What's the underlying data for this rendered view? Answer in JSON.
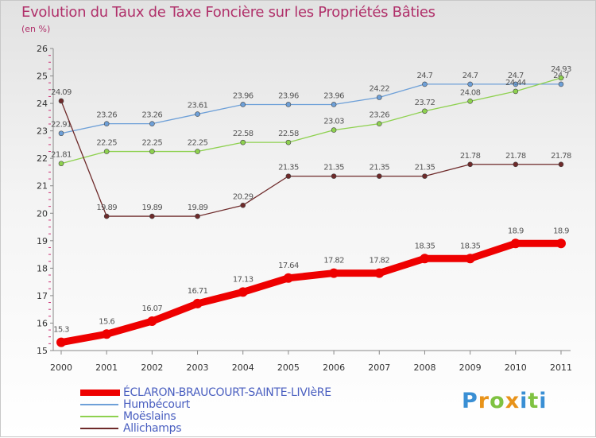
{
  "header": {
    "title": "Evolution du Taux de Taxe Foncière sur les Propriétés Bâties",
    "unit": "(en %)"
  },
  "logo": {
    "letters": [
      "P",
      "r",
      "o",
      "x",
      "i",
      "t",
      "i"
    ],
    "colors": [
      "#3a8fd4",
      "#e8931a",
      "#7fc241",
      "#e8931a",
      "#3a8fd4",
      "#7fc241",
      "#3a8fd4"
    ]
  },
  "chart_data": {
    "type": "line",
    "title": "Evolution du Taux de Taxe Foncière sur les Propriétés Bâties",
    "xlabel": "",
    "ylabel": "(en %)",
    "x": [
      "2000",
      "2001",
      "2002",
      "2003",
      "2004",
      "2005",
      "2006",
      "2007",
      "2008",
      "2009",
      "2010",
      "2011"
    ],
    "ylim": [
      15,
      26
    ],
    "yticks": [
      "15",
      "16",
      "17",
      "18",
      "19",
      "20",
      "21",
      "22",
      "23",
      "24",
      "25",
      "26"
    ],
    "grid": false,
    "legend_position": "bottom-left",
    "series": [
      {
        "name": "ÉCLARON-BRAUCOURT-SAINTE-LIVIèRE",
        "color": "#ee0000",
        "values": [
          15.3,
          15.6,
          16.07,
          16.71,
          17.13,
          17.64,
          17.82,
          17.82,
          18.35,
          18.35,
          18.9,
          18.9
        ],
        "labels": [
          "15.3",
          "15.6",
          "16.07",
          "16.71",
          "17.13",
          "17.64",
          "17.82",
          "17.82",
          "18.35",
          "18.35",
          "18.9",
          "18.9"
        ]
      },
      {
        "name": "Humbécourt",
        "color": "#6ea0d8",
        "values": [
          22.91,
          23.26,
          23.26,
          23.61,
          23.96,
          23.96,
          23.96,
          24.22,
          24.7,
          24.7,
          24.7,
          24.7
        ],
        "labels": [
          "22.91",
          "23.26",
          "23.26",
          "23.61",
          "23.96",
          "23.96",
          "23.96",
          "24.22",
          "24.7",
          "24.7",
          "24.7",
          "24.7"
        ]
      },
      {
        "name": "Moëslains",
        "color": "#8ed14f",
        "values": [
          21.81,
          22.25,
          22.25,
          22.25,
          22.58,
          22.58,
          23.03,
          23.26,
          23.72,
          24.08,
          24.44,
          24.93
        ],
        "labels": [
          "21.81",
          "22.25",
          "22.25",
          "22.25",
          "22.58",
          "22.58",
          "23.03",
          "23.26",
          "23.72",
          "24.08",
          "24.44",
          "24.93"
        ]
      },
      {
        "name": "Allichamps",
        "color": "#6e2a2a",
        "values": [
          24.09,
          19.89,
          19.89,
          19.89,
          20.29,
          21.35,
          21.35,
          21.35,
          21.35,
          21.78,
          21.78,
          21.78
        ],
        "labels": [
          "24.09",
          "19.89",
          "19.89",
          "19.89",
          "20.29",
          "21.35",
          "21.35",
          "21.35",
          "21.35",
          "21.78",
          "21.78",
          "21.78"
        ]
      }
    ]
  }
}
